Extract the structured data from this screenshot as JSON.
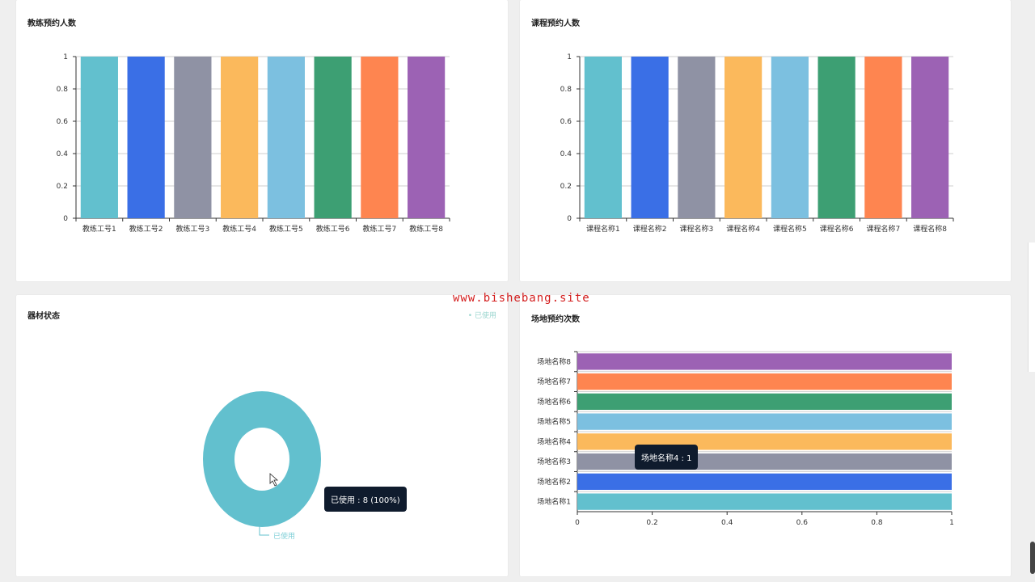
{
  "watermark": "www.bishebang.site",
  "panels": {
    "coach": {
      "title": "教练预约人数",
      "chart_data": {
        "type": "bar",
        "categories": [
          "教练工号1",
          "教练工号2",
          "教练工号3",
          "教练工号4",
          "教练工号5",
          "教练工号6",
          "教练工号7",
          "教练工号8"
        ],
        "values": [
          1,
          1,
          1,
          1,
          1,
          1,
          1,
          1
        ],
        "ylim": [
          0,
          1
        ],
        "yticks": [
          "0",
          "0.2",
          "0.4",
          "0.6",
          "0.8",
          "1"
        ],
        "colors": [
          "#62c0ce",
          "#3a6fe6",
          "#8f92a4",
          "#fbb95c",
          "#7cc0e0",
          "#3d9f73",
          "#fe8550",
          "#9c62b4"
        ]
      }
    },
    "course": {
      "title": "课程预约人数",
      "chart_data": {
        "type": "bar",
        "categories": [
          "课程名称1",
          "课程名称2",
          "课程名称3",
          "课程名称4",
          "课程名称5",
          "课程名称6",
          "课程名称7",
          "课程名称8"
        ],
        "values": [
          1,
          1,
          1,
          1,
          1,
          1,
          1,
          1
        ],
        "ylim": [
          0,
          1
        ],
        "yticks": [
          "0",
          "0.2",
          "0.4",
          "0.6",
          "0.8",
          "1"
        ],
        "colors": [
          "#62c0ce",
          "#3a6fe6",
          "#8f92a4",
          "#fbb95c",
          "#7cc0e0",
          "#3d9f73",
          "#fe8550",
          "#9c62b4"
        ]
      }
    },
    "equipment": {
      "title": "器材状态",
      "legend_label": "已使用",
      "chart_data": {
        "type": "pie",
        "slices": [
          {
            "label": "已使用",
            "value": 8,
            "percent": 100
          }
        ],
        "colors": [
          "#62c0ce"
        ]
      },
      "tooltip": "已使用 : 8 (100%)",
      "label_line_text": "已使用"
    },
    "venue": {
      "title": "场地预约次数",
      "chart_data": {
        "type": "bar",
        "orientation": "horizontal",
        "categories": [
          "场地名称1",
          "场地名称2",
          "场地名称3",
          "场地名称4",
          "场地名称5",
          "场地名称6",
          "场地名称7",
          "场地名称8"
        ],
        "values": [
          1,
          1,
          1,
          1,
          1,
          1,
          1,
          1
        ],
        "xlim": [
          0,
          1
        ],
        "xticks": [
          "0",
          "0.2",
          "0.4",
          "0.6",
          "0.8",
          "1"
        ],
        "colors": [
          "#62c0ce",
          "#3a6fe6",
          "#8f92a4",
          "#fbb95c",
          "#7cc0e0",
          "#3d9f73",
          "#fe8550",
          "#9c62b4"
        ]
      },
      "tooltip": "场地名称4 : 1"
    }
  }
}
